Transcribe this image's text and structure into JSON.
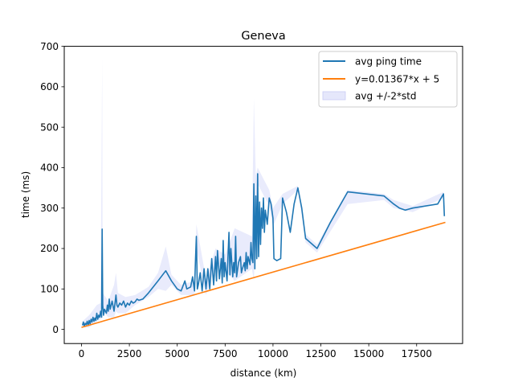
{
  "chart_data": {
    "type": "line",
    "title": "Geneva",
    "xlabel": "distance (km)",
    "ylabel": "time (ms)",
    "xlim": [
      -900,
      19900
    ],
    "ylim": [
      -35,
      700
    ],
    "xticks": [
      0,
      2500,
      5000,
      7500,
      10000,
      12500,
      15000,
      17500
    ],
    "yticks": [
      0,
      100,
      200,
      300,
      400,
      500,
      600,
      700
    ],
    "grid": false,
    "legend_position": "top-right",
    "series": [
      {
        "name": "avg ping time",
        "kind": "line",
        "color": "#1f77b4",
        "points": [
          [
            50,
            10
          ],
          [
            100,
            18
          ],
          [
            150,
            8
          ],
          [
            200,
            15
          ],
          [
            250,
            12
          ],
          [
            300,
            20
          ],
          [
            350,
            10
          ],
          [
            400,
            22
          ],
          [
            450,
            14
          ],
          [
            500,
            25
          ],
          [
            550,
            18
          ],
          [
            600,
            30
          ],
          [
            650,
            20
          ],
          [
            700,
            28
          ],
          [
            750,
            22
          ],
          [
            800,
            40
          ],
          [
            850,
            25
          ],
          [
            900,
            35
          ],
          [
            950,
            30
          ],
          [
            1000,
            45
          ],
          [
            1050,
            30
          ],
          [
            1080,
            248
          ],
          [
            1110,
            60
          ],
          [
            1150,
            35
          ],
          [
            1200,
            50
          ],
          [
            1300,
            40
          ],
          [
            1350,
            60
          ],
          [
            1400,
            45
          ],
          [
            1450,
            75
          ],
          [
            1500,
            50
          ],
          [
            1600,
            70
          ],
          [
            1700,
            45
          ],
          [
            1800,
            85
          ],
          [
            1850,
            60
          ],
          [
            1900,
            55
          ],
          [
            2000,
            65
          ],
          [
            2100,
            60
          ],
          [
            2200,
            70
          ],
          [
            2300,
            55
          ],
          [
            2400,
            65
          ],
          [
            2500,
            60
          ],
          [
            2600,
            70
          ],
          [
            2700,
            65
          ],
          [
            2800,
            68
          ],
          [
            2900,
            75
          ],
          [
            3000,
            72
          ],
          [
            3200,
            75
          ],
          [
            3500,
            90
          ],
          [
            4000,
            120
          ],
          [
            4400,
            145
          ],
          [
            4700,
            120
          ],
          [
            5000,
            100
          ],
          [
            5200,
            95
          ],
          [
            5400,
            120
          ],
          [
            5500,
            100
          ],
          [
            5700,
            105
          ],
          [
            5800,
            130
          ],
          [
            5900,
            95
          ],
          [
            5950,
            165
          ],
          [
            6000,
            230
          ],
          [
            6050,
            100
          ],
          [
            6100,
            110
          ],
          [
            6200,
            140
          ],
          [
            6300,
            95
          ],
          [
            6400,
            150
          ],
          [
            6500,
            100
          ],
          [
            6600,
            150
          ],
          [
            6700,
            100
          ],
          [
            6800,
            175
          ],
          [
            6900,
            110
          ],
          [
            7000,
            180
          ],
          [
            7050,
            120
          ],
          [
            7100,
            195
          ],
          [
            7200,
            125
          ],
          [
            7300,
            175
          ],
          [
            7350,
            115
          ],
          [
            7400,
            220
          ],
          [
            7450,
            130
          ],
          [
            7500,
            165
          ],
          [
            7600,
            120
          ],
          [
            7700,
            240
          ],
          [
            7750,
            135
          ],
          [
            7800,
            200
          ],
          [
            7900,
            130
          ],
          [
            7950,
            165
          ],
          [
            8000,
            140
          ],
          [
            8050,
            230
          ],
          [
            8100,
            130
          ],
          [
            8200,
            165
          ],
          [
            8300,
            180
          ],
          [
            8350,
            140
          ],
          [
            8400,
            150
          ],
          [
            8500,
            165
          ],
          [
            8550,
            145
          ],
          [
            8600,
            190
          ],
          [
            8650,
            150
          ],
          [
            8700,
            180
          ],
          [
            8800,
            160
          ],
          [
            8850,
            215
          ],
          [
            8900,
            175
          ],
          [
            8950,
            165
          ],
          [
            9000,
            360
          ],
          [
            9050,
            150
          ],
          [
            9100,
            330
          ],
          [
            9150,
            175
          ],
          [
            9200,
            385
          ],
          [
            9250,
            180
          ],
          [
            9300,
            315
          ],
          [
            9350,
            210
          ],
          [
            9400,
            300
          ],
          [
            9450,
            250
          ],
          [
            9500,
            325
          ],
          [
            9550,
            240
          ],
          [
            9600,
            295
          ],
          [
            9700,
            260
          ],
          [
            9800,
            325
          ],
          [
            9900,
            310
          ],
          [
            10000,
            275
          ],
          [
            10050,
            175
          ],
          [
            10200,
            170
          ],
          [
            10400,
            175
          ],
          [
            10500,
            325
          ],
          [
            10700,
            290
          ],
          [
            10900,
            240
          ],
          [
            11100,
            310
          ],
          [
            11300,
            350
          ],
          [
            11500,
            300
          ],
          [
            11700,
            225
          ],
          [
            12300,
            200
          ],
          [
            13000,
            265
          ],
          [
            13900,
            340
          ],
          [
            15800,
            330
          ],
          [
            16300,
            310
          ],
          [
            16600,
            300
          ],
          [
            16900,
            295
          ],
          [
            17300,
            300
          ],
          [
            18600,
            310
          ],
          [
            18900,
            335
          ],
          [
            18950,
            280
          ]
        ]
      },
      {
        "name": "y=0.01367*x + 5",
        "kind": "fit",
        "color": "#ff7f0e",
        "slope": 0.01367,
        "intercept": 5,
        "x_range": [
          0,
          19000
        ]
      },
      {
        "name": "avg +/-2*std",
        "kind": "band",
        "color": "#e5e7fb",
        "upper": [
          [
            50,
            20
          ],
          [
            400,
            35
          ],
          [
            800,
            60
          ],
          [
            1000,
            65
          ],
          [
            1080,
            670
          ],
          [
            1110,
            90
          ],
          [
            1400,
            70
          ],
          [
            1700,
            110
          ],
          [
            1800,
            140
          ],
          [
            1900,
            90
          ],
          [
            2300,
            80
          ],
          [
            2800,
            85
          ],
          [
            3500,
            105
          ],
          [
            4000,
            140
          ],
          [
            4400,
            205
          ],
          [
            4700,
            135
          ],
          [
            5200,
            110
          ],
          [
            5900,
            120
          ],
          [
            6000,
            260
          ],
          [
            6500,
            125
          ],
          [
            7000,
            200
          ],
          [
            7500,
            185
          ],
          [
            8000,
            250
          ],
          [
            8900,
            230
          ],
          [
            9000,
            570
          ],
          [
            9100,
            380
          ],
          [
            9200,
            400
          ],
          [
            9800,
            345
          ],
          [
            10000,
            300
          ],
          [
            10500,
            335
          ],
          [
            11300,
            355
          ],
          [
            11700,
            235
          ],
          [
            12300,
            210
          ],
          [
            13900,
            345
          ],
          [
            15800,
            335
          ],
          [
            16300,
            320
          ],
          [
            17300,
            305
          ],
          [
            18900,
            340
          ],
          [
            18950,
            295
          ]
        ],
        "lower": [
          [
            50,
            5
          ],
          [
            400,
            5
          ],
          [
            800,
            20
          ],
          [
            1000,
            25
          ],
          [
            1080,
            230
          ],
          [
            1110,
            45
          ],
          [
            1400,
            30
          ],
          [
            1700,
            30
          ],
          [
            1800,
            45
          ],
          [
            1900,
            40
          ],
          [
            2300,
            40
          ],
          [
            2800,
            60
          ],
          [
            3500,
            80
          ],
          [
            4000,
            100
          ],
          [
            4400,
            95
          ],
          [
            4700,
            110
          ],
          [
            5200,
            85
          ],
          [
            5900,
            85
          ],
          [
            6000,
            200
          ],
          [
            6500,
            85
          ],
          [
            7000,
            160
          ],
          [
            7500,
            145
          ],
          [
            8000,
            120
          ],
          [
            8900,
            150
          ],
          [
            9000,
            120
          ],
          [
            9100,
            260
          ],
          [
            9200,
            360
          ],
          [
            9800,
            305
          ],
          [
            10000,
            255
          ],
          [
            10500,
            310
          ],
          [
            11300,
            345
          ],
          [
            11700,
            215
          ],
          [
            12300,
            190
          ],
          [
            13900,
            310
          ],
          [
            15800,
            320
          ],
          [
            16300,
            300
          ],
          [
            17300,
            290
          ],
          [
            18900,
            325
          ],
          [
            18950,
            265
          ]
        ]
      }
    ]
  }
}
